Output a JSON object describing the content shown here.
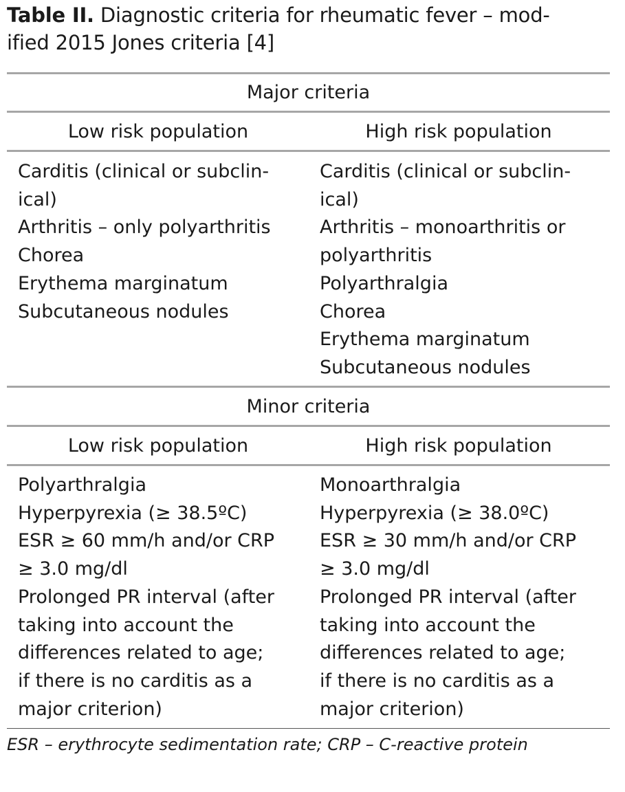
{
  "caption": {
    "label": "Table II.",
    "text_line1": " Diagnostic criteria for rheumatic fever – mod-",
    "text_line2": "ified 2015 Jones criteria [4]"
  },
  "major": {
    "title": "Major criteria",
    "low_header": "Low risk population",
    "high_header": "High risk population",
    "low_lines": [
      "Carditis (clinical or subclin-",
      "ical)",
      "Arthritis – only polyarthritis",
      "Chorea",
      "Erythema marginatum",
      "Subcutaneous nodules"
    ],
    "high_lines": [
      "Carditis (clinical or subclin-",
      "ical)",
      "Arthritis – monoarthritis or",
      "polyarthritis",
      "Polyarthralgia",
      "Chorea",
      "Erythema marginatum",
      "Subcutaneous nodules"
    ]
  },
  "minor": {
    "title": "Minor criteria",
    "low_header": "Low risk population",
    "high_header": "High risk population",
    "low_lines": [
      "Polyarthralgia",
      "Hyperpyrexia (≥ 38.5ºC)",
      "ESR ≥ 60 mm/h and/or CRP",
      "≥ 3.0 mg/dl",
      "Prolonged PR interval (after",
      "taking into account the",
      "differences related to age;",
      "if there is no carditis as a",
      "major criterion)"
    ],
    "high_lines": [
      "Monoarthralgia",
      "Hyperpyrexia (≥ 38.0ºC)",
      "ESR ≥ 30 mm/h and/or CRP",
      "≥ 3.0 mg/dl",
      "Prolonged PR interval (after",
      "taking into account the",
      "differences related to age;",
      "if there is no carditis as a",
      "major criterion)"
    ]
  },
  "footnote": "ESR – erythrocyte sedimentation rate; CRP – C-reactive protein"
}
